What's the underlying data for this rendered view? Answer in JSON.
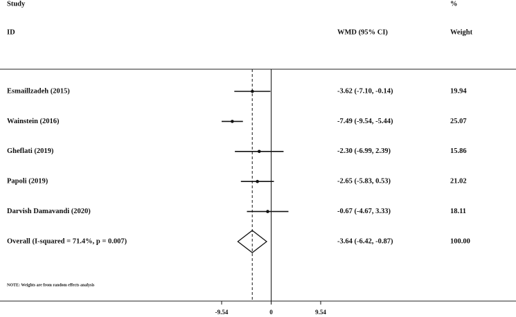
{
  "chart_data": {
    "type": "forest",
    "header": {
      "study": "Study",
      "id": "ID",
      "effect": "WMD (95% CI)",
      "percent": "%",
      "weight": "Weight"
    },
    "note": "NOTE: Weights are from random effects analysis",
    "studies": [
      {
        "name": "Esmaillzadeh (2015)",
        "estimate": -3.62,
        "lower": -7.1,
        "upper": -0.14,
        "ci_label": "-3.62 (-7.10, -0.14)",
        "weight": 19.94
      },
      {
        "name": "Wainstein (2016)",
        "estimate": -7.49,
        "lower": -9.54,
        "upper": -5.44,
        "ci_label": "-7.49 (-9.54, -5.44)",
        "weight": 25.07
      },
      {
        "name": "Gheflati (2019)",
        "estimate": -2.3,
        "lower": -6.99,
        "upper": 2.39,
        "ci_label": "-2.30 (-6.99, 2.39)",
        "weight": 15.86
      },
      {
        "name": "Papoli (2019)",
        "estimate": -2.65,
        "lower": -5.83,
        "upper": 0.53,
        "ci_label": "-2.65 (-5.83, 0.53)",
        "weight": 21.02
      },
      {
        "name": "Darvish Damavandi (2020)",
        "estimate": -0.67,
        "lower": -4.67,
        "upper": 3.33,
        "ci_label": "-0.67 (-4.67, 3.33)",
        "weight": 18.11
      }
    ],
    "overall": {
      "name": "Overall  (I-squared = 71.4%, p = 0.007)",
      "estimate": -3.64,
      "lower": -6.42,
      "upper": -0.87,
      "ci_label": "-3.64 (-6.42, -0.87)",
      "weight": 100,
      "weight_label": "100.00"
    },
    "xlim": [
      -9.54,
      9.54
    ],
    "xticks": [
      -9.54,
      0,
      9.54
    ]
  }
}
